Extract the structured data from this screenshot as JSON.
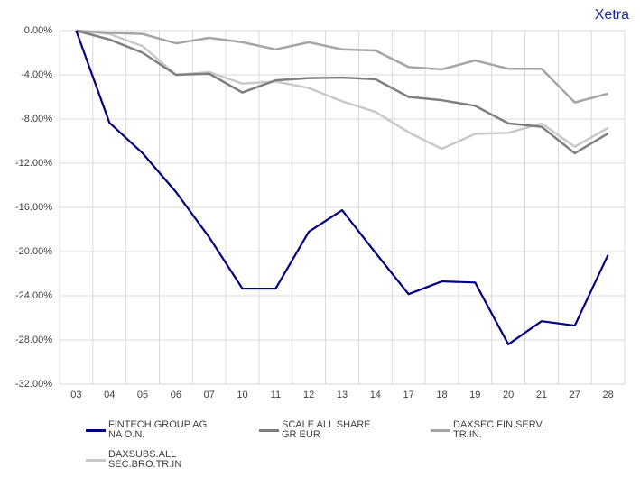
{
  "chart_data": {
    "type": "line",
    "annotation": "Xetra",
    "categories": [
      "03",
      "04",
      "05",
      "06",
      "07",
      "10",
      "11",
      "12",
      "13",
      "14",
      "17",
      "18",
      "19",
      "20",
      "21",
      "27",
      "28"
    ],
    "series": [
      {
        "name": "FINTECH GROUP AG NA O.N.",
        "color": "#000080",
        "values": [
          0,
          -8.33,
          -11.1,
          -14.6,
          -18.7,
          -23.35,
          -23.35,
          -18.2,
          -16.25,
          -20.1,
          -23.85,
          -22.7,
          -22.8,
          -28.4,
          -26.3,
          -26.7,
          -20.3
        ]
      },
      {
        "name": "SCALE ALL SHARE GR EUR",
        "color": "#7f7f7f",
        "values": [
          0,
          -0.8,
          -2.0,
          -4.0,
          -3.9,
          -5.6,
          -4.5,
          -4.3,
          -4.25,
          -4.4,
          -6.0,
          -6.3,
          -6.8,
          -8.4,
          -8.7,
          -11.1,
          -9.3
        ]
      },
      {
        "name": "DAXSEC.FIN.SERV. TR.IN.",
        "color": "#a5a5a5",
        "values": [
          0,
          -0.2,
          -0.3,
          -1.15,
          -0.65,
          -1.05,
          -1.7,
          -1.05,
          -1.7,
          -1.8,
          -3.3,
          -3.5,
          -2.7,
          -3.45,
          -3.45,
          -6.5,
          -5.7
        ]
      },
      {
        "name": "DAXSUBS.ALL SEC.BRO.TR.IN",
        "color": "#c9c9c9",
        "values": [
          0,
          -0.3,
          -1.4,
          -4.0,
          -3.75,
          -4.8,
          -4.6,
          -5.2,
          -6.4,
          -7.35,
          -9.2,
          -10.7,
          -9.35,
          -9.25,
          -8.4,
          -10.5,
          -8.8
        ]
      }
    ],
    "ylim": [
      -32,
      0
    ],
    "yticks": [
      {
        "value": 0,
        "label": "0.00%"
      },
      {
        "value": -4,
        "label": "-4.00%"
      },
      {
        "value": -8,
        "label": "-8.00%"
      },
      {
        "value": -12,
        "label": "-12.00%"
      },
      {
        "value": -16,
        "label": "-16.00%"
      },
      {
        "value": -20,
        "label": "-20.00%"
      },
      {
        "value": -24,
        "label": "-24.00%"
      },
      {
        "value": -28,
        "label": "-28.00%"
      },
      {
        "value": -32,
        "label": "-32.00%"
      }
    ],
    "grid": true
  }
}
